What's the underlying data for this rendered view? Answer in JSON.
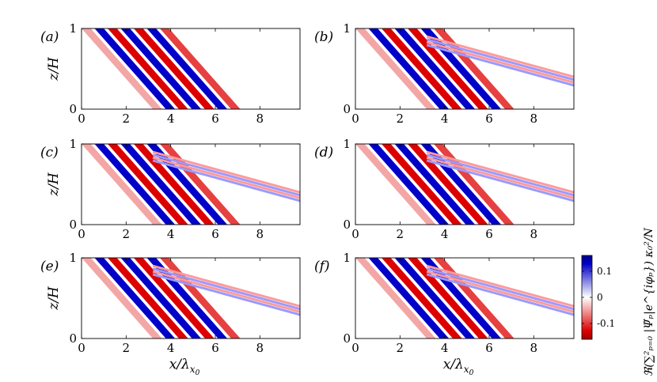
{
  "chart_data": {
    "type": "heatmap",
    "layout": "3 rows x 2 columns of panels",
    "panels": [
      {
        "label": "(a)",
        "secondary_beams": 0
      },
      {
        "label": "(b)",
        "secondary_beams": 2
      },
      {
        "label": "(c)",
        "secondary_beams": 2
      },
      {
        "label": "(d)",
        "secondary_beams": 2
      },
      {
        "label": "(e)",
        "secondary_beams": 2
      },
      {
        "label": "(f)",
        "secondary_beams": 2
      }
    ],
    "xlabel": "x/λ",
    "xlabel_sub": "x",
    "xlabel_subsub": "0",
    "ylabel": "z/H",
    "xlim": [
      0,
      9.8
    ],
    "ylim": [
      0,
      1
    ],
    "xticks": [
      "0",
      "2",
      "4",
      "6",
      "8"
    ],
    "xtick_values": [
      0,
      2,
      4,
      6,
      8
    ],
    "yticks": [
      "0",
      "1"
    ],
    "ytick_values": [
      0,
      1
    ],
    "colorbar": {
      "title": "ℜ(∑²ₚ₌₀ |Ψ̃ₚ|e^{iφₚ}) κ₀²/N",
      "ticks": [
        "0.1",
        "0",
        "-0.1"
      ],
      "tick_values": [
        0.1,
        0,
        -0.1
      ],
      "range": [
        -0.15,
        0.15
      ],
      "colormap": "red-white-blue",
      "low_color": "#dd0000",
      "mid_color": "#ffffff",
      "high_color": "#0000c8"
    },
    "primary_beam": {
      "x_left_at_top": 0.0,
      "x_left_at_bottom": 3.2,
      "x_right_at_bottom": 7.3,
      "wavelengths_across": 4.5
    },
    "secondary_beam": {
      "x_start": 3.2,
      "z_start": 0.9,
      "x_end": 9.8,
      "z_end": 0.4
    }
  }
}
